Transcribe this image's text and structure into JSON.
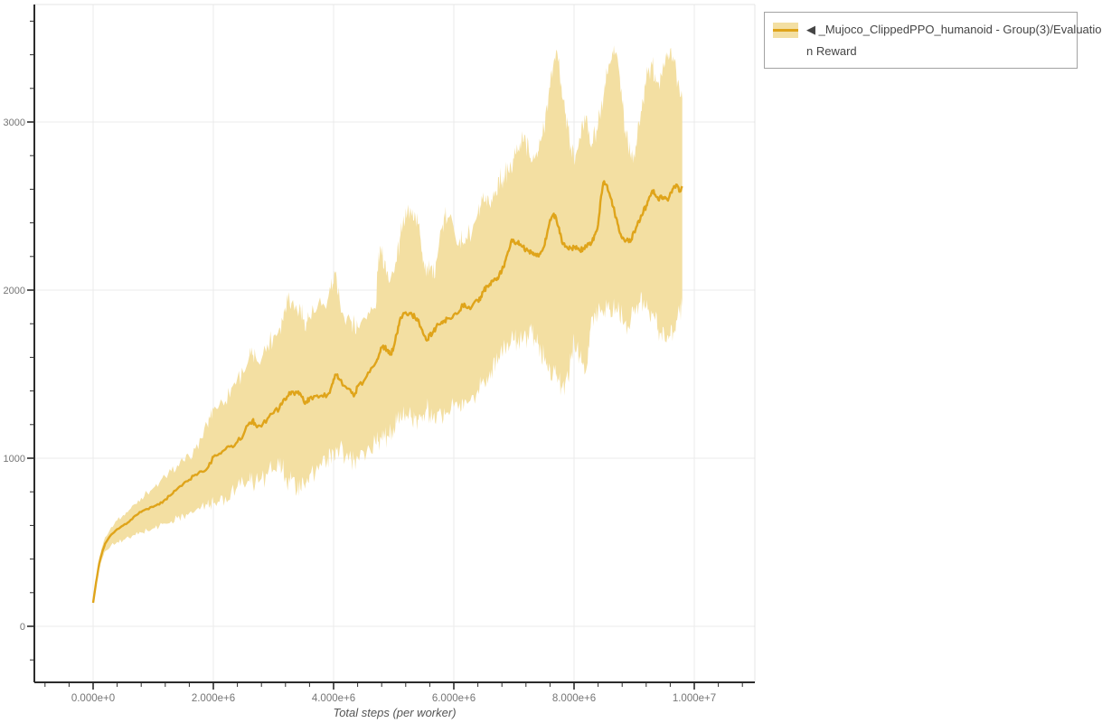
{
  "page": {
    "background": "#ffffff"
  },
  "legend": {
    "full_label": "◀ _Mujoco_ClippedPPO_humanoid - Group(3)/Evaluation Reward",
    "lines": [
      "◀ _Mujoco_ClippedPPO_humanoid - Group(3)/Evaluatio",
      "n Reward"
    ],
    "border_color": "#a3a3a3",
    "text_color": "#454545"
  },
  "axis_style": {
    "axis_line_color": "#2b2b2b",
    "frame_line_color": "#e4e4e4",
    "grid_color": "#ebebeb",
    "tick_label_color": "#757575",
    "title_color": "#555555"
  },
  "chart_data": {
    "type": "line",
    "title": "",
    "xlabel": "Total steps (per worker)",
    "ylabel": "",
    "x_unit": "steps (x_e6 = millions of steps)",
    "x_range_e6": [
      -0.98,
      11.0
    ],
    "y_range": [
      -333,
      3699
    ],
    "grid": true,
    "legend_position": "top-right-outside",
    "x_ticks": {
      "major": [
        {
          "value_e6": 0,
          "label": "0.000e+0"
        },
        {
          "value_e6": 2,
          "label": "2.000e+6"
        },
        {
          "value_e6": 4,
          "label": "4.000e+6"
        },
        {
          "value_e6": 6,
          "label": "6.000e+6"
        },
        {
          "value_e6": 8,
          "label": "8.000e+6"
        },
        {
          "value_e6": 10,
          "label": "1.000e+7"
        }
      ],
      "minor_step_e6": 0.4
    },
    "y_ticks": {
      "major": [
        {
          "value": 0,
          "label": "0"
        },
        {
          "value": 1000,
          "label": "1000"
        },
        {
          "value": 2000,
          "label": "2000"
        },
        {
          "value": 3000,
          "label": "3000"
        }
      ],
      "minor_step": 200
    },
    "series": [
      {
        "name": "◀ _Mujoco_ClippedPPO_humanoid - Group(3)/Evaluation Reward",
        "line_color": "#dfa41a",
        "band_color": "#f3dfa2",
        "x_e6": [
          0,
          0.05,
          0.1,
          0.15,
          0.2,
          0.3,
          0.4,
          0.5,
          0.6,
          0.7,
          0.8,
          0.9,
          1,
          1.1,
          1.2,
          1.3,
          1.4,
          1.5,
          1.6,
          1.7,
          1.8,
          1.9,
          1.95,
          2,
          2.1,
          2.2,
          2.3,
          2.4,
          2.5,
          2.6,
          2.65,
          2.7,
          2.8,
          2.9,
          3,
          3.1,
          3.15,
          3.2,
          3.25,
          3.3,
          3.4,
          3.45,
          3.5,
          3.55,
          3.6,
          3.7,
          3.8,
          3.9,
          3.95,
          4,
          4.05,
          4.1,
          4.2,
          4.3,
          4.35,
          4.4,
          4.5,
          4.6,
          4.7,
          4.75,
          4.8,
          4.85,
          4.9,
          4.95,
          5,
          5.05,
          5.1,
          5.15,
          5.2,
          5.25,
          5.3,
          5.35,
          5.4,
          5.45,
          5.5,
          5.55,
          5.6,
          5.65,
          5.7,
          5.8,
          5.85,
          5.9,
          6,
          6.1,
          6.15,
          6.2,
          6.3,
          6.4,
          6.45,
          6.5,
          6.55,
          6.6,
          6.65,
          6.7,
          6.75,
          6.8,
          6.85,
          6.9,
          6.95,
          7,
          7.05,
          7.1,
          7.15,
          7.2,
          7.25,
          7.3,
          7.35,
          7.4,
          7.45,
          7.5,
          7.55,
          7.6,
          7.65,
          7.7,
          7.75,
          7.8,
          7.85,
          7.9,
          7.95,
          8,
          8.05,
          8.1,
          8.15,
          8.2,
          8.25,
          8.3,
          8.35,
          8.4,
          8.45,
          8.5,
          8.55,
          8.6,
          8.65,
          8.7,
          8.75,
          8.8,
          8.85,
          8.9,
          8.95,
          9,
          9.05,
          9.1,
          9.15,
          9.2,
          9.25,
          9.3,
          9.35,
          9.4,
          9.45,
          9.5,
          9.55,
          9.6,
          9.65,
          9.7,
          9.75,
          9.8
        ],
        "mean": [
          140,
          262,
          372,
          440,
          492,
          545,
          578,
          600,
          622,
          658,
          680,
          698,
          710,
          724,
          755,
          782,
          818,
          848,
          872,
          902,
          922,
          940,
          972,
          1008,
          1028,
          1052,
          1074,
          1098,
          1140,
          1212,
          1224,
          1200,
          1188,
          1236,
          1268,
          1298,
          1330,
          1346,
          1372,
          1396,
          1388,
          1382,
          1341,
          1333,
          1358,
          1370,
          1373,
          1378,
          1412,
          1470,
          1496,
          1466,
          1426,
          1388,
          1378,
          1428,
          1458,
          1512,
          1568,
          1608,
          1658,
          1662,
          1645,
          1618,
          1662,
          1738,
          1818,
          1852,
          1868,
          1856,
          1858,
          1840,
          1818,
          1780,
          1732,
          1700,
          1732,
          1748,
          1775,
          1812,
          1820,
          1832,
          1855,
          1878,
          1910,
          1898,
          1902,
          1938,
          1962,
          1998,
          2022,
          2038,
          2052,
          2062,
          2082,
          2118,
          2168,
          2228,
          2288,
          2292,
          2282,
          2272,
          2258,
          2242,
          2234,
          2226,
          2212,
          2202,
          2228,
          2258,
          2332,
          2418,
          2448,
          2432,
          2372,
          2282,
          2258,
          2246,
          2250,
          2255,
          2245,
          2236,
          2248,
          2258,
          2272,
          2288,
          2332,
          2388,
          2558,
          2648,
          2622,
          2558,
          2495,
          2432,
          2352,
          2308,
          2288,
          2295,
          2298,
          2348,
          2385,
          2418,
          2462,
          2502,
          2552,
          2592,
          2568,
          2538,
          2562,
          2545,
          2538,
          2578,
          2605,
          2628,
          2585,
          2618
        ],
        "band_low": [
          132,
          245,
          342,
          400,
          446,
          482,
          502,
          513,
          526,
          542,
          558,
          570,
          583,
          595,
          611,
          626,
          643,
          658,
          673,
          688,
          712,
          722,
          728,
          731,
          740,
          772,
          808,
          831,
          846,
          862,
          868,
          858,
          878,
          901,
          932,
          944,
          940,
          886,
          868,
          872,
          811,
          818,
          850,
          862,
          902,
          918,
          952,
          1002,
          1022,
          1036,
          1046,
          1050,
          1008,
          982,
          998,
          1006,
          1038,
          1058,
          1086,
          1096,
          1106,
          1118,
          1136,
          1152,
          1186,
          1206,
          1226,
          1248,
          1266,
          1252,
          1240,
          1232,
          1228,
          1242,
          1262,
          1298,
          1252,
          1222,
          1202,
          1246,
          1262,
          1276,
          1302,
          1330,
          1340,
          1346,
          1376,
          1408,
          1432,
          1456,
          1488,
          1518,
          1548,
          1576,
          1602,
          1632,
          1658,
          1678,
          1692,
          1700,
          1696,
          1688,
          1702,
          1718,
          1728,
          1736,
          1706,
          1672,
          1638,
          1602,
          1568,
          1536,
          1506,
          1482,
          1458,
          1412,
          1438,
          1472,
          1585,
          1706,
          1662,
          1588,
          1552,
          1522,
          1652,
          1838,
          1858,
          1868,
          1875,
          1880,
          1885,
          1888,
          1892,
          1895,
          1882,
          1848,
          1812,
          1788,
          1842,
          1902,
          1918,
          1928,
          1912,
          1888,
          1868,
          1856,
          1822,
          1772,
          1748,
          1738,
          1728,
          1726,
          1752,
          1822,
          1858,
          1898
        ],
        "band_high": [
          150,
          285,
          402,
          475,
          530,
          590,
          630,
          662,
          692,
          728,
          765,
          795,
          822,
          852,
          892,
          922,
          958,
          984,
          1010,
          1056,
          1118,
          1198,
          1246,
          1290,
          1318,
          1340,
          1418,
          1478,
          1506,
          1612,
          1618,
          1608,
          1588,
          1678,
          1728,
          1778,
          1822,
          1898,
          1988,
          1922,
          1868,
          1892,
          1828,
          1822,
          1842,
          1868,
          1906,
          1940,
          2002,
          2042,
          2078,
          1948,
          1792,
          1812,
          1796,
          1782,
          1838,
          1858,
          1888,
          2228,
          2206,
          2178,
          2108,
          2072,
          2098,
          2166,
          2298,
          2388,
          2487,
          2470,
          2440,
          2466,
          2388,
          2298,
          2178,
          2128,
          2108,
          2068,
          2166,
          2368,
          2428,
          2432,
          2368,
          2308,
          2282,
          2315,
          2338,
          2458,
          2486,
          2522,
          2498,
          2502,
          2558,
          2592,
          2672,
          2648,
          2688,
          2718,
          2738,
          2782,
          2868,
          2878,
          2882,
          2876,
          2822,
          2762,
          2788,
          2822,
          2890,
          2958,
          3105,
          3205,
          3322,
          3422,
          3380,
          3148,
          3058,
          2968,
          2858,
          2778,
          2832,
          2902,
          2972,
          3038,
          2952,
          2872,
          2922,
          2985,
          3088,
          3182,
          3282,
          3342,
          3398,
          3415,
          3302,
          3102,
          2952,
          2852,
          2822,
          2812,
          2902,
          3002,
          3122,
          3248,
          3302,
          3338,
          3288,
          3242,
          3282,
          3322,
          3382,
          3435,
          3392,
          3302,
          3202,
          3142
        ]
      }
    ]
  }
}
